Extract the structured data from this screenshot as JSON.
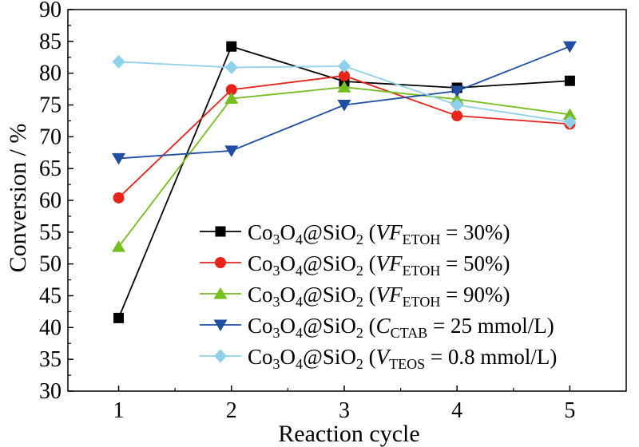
{
  "chart_data": {
    "type": "line",
    "xlabel": "Reaction cycle",
    "ylabel": "Conversion / %",
    "x": [
      1,
      2,
      3,
      4,
      5
    ],
    "xlim": [
      0.55,
      5.5
    ],
    "ylim": [
      30,
      90
    ],
    "xticks": [
      "1",
      "2",
      "3",
      "4",
      "5"
    ],
    "yticks": [
      "30",
      "35",
      "40",
      "45",
      "50",
      "55",
      "60",
      "65",
      "70",
      "75",
      "80",
      "85",
      "90"
    ],
    "grid": false,
    "legend_position": "bottom-right",
    "series": [
      {
        "name": "Co3O4@SiO2 (VF_ETOH = 30%)",
        "legend": {
          "main": "Co3O4@SiO2",
          "open": "(",
          "var": "VF",
          "sub": "ETOH",
          "rest": " = 30%)"
        },
        "values": [
          41.5,
          84.2,
          78.7,
          77.7,
          78.8
        ],
        "color": "#000000",
        "marker": "square"
      },
      {
        "name": "Co3O4@SiO2 (VF_ETOH = 50%)",
        "legend": {
          "main": "Co3O4@SiO2",
          "open": "(",
          "var": "VF",
          "sub": "ETOH",
          "rest": " = 50%)"
        },
        "values": [
          60.4,
          77.4,
          79.6,
          73.3,
          72.0
        ],
        "color": "#e8231b",
        "marker": "circle"
      },
      {
        "name": "Co3O4@SiO2 (VF_ETOH = 90%)",
        "legend": {
          "main": "Co3O4@SiO2",
          "open": "(",
          "var": "VF",
          "sub": "ETOH",
          "rest": " = 90%)"
        },
        "values": [
          52.7,
          76.0,
          77.8,
          75.9,
          73.5
        ],
        "color": "#74bf1e",
        "marker": "triangle-up"
      },
      {
        "name": "Co3O4@SiO2 (C_CTAB = 25 mmol/L)",
        "legend": {
          "main": "Co3O4@SiO2",
          "open": "(",
          "var": "C",
          "sub": "CTAB",
          "rest": " = 25 mmol/L)"
        },
        "values": [
          66.6,
          67.8,
          75.0,
          77.2,
          84.2
        ],
        "color": "#1f4ea3",
        "marker": "triangle-down"
      },
      {
        "name": "Co3O4@SiO2 (V_TEOS = 0.8 mmol/L)",
        "legend": {
          "main": "Co3O4@SiO2",
          "open": "(",
          "var": "V",
          "sub": "TEOS",
          "rest": " = 0.8 mmol/L)"
        },
        "values": [
          81.8,
          80.9,
          81.1,
          75.0,
          72.3
        ],
        "color": "#8fd0ea",
        "marker": "diamond"
      }
    ]
  }
}
